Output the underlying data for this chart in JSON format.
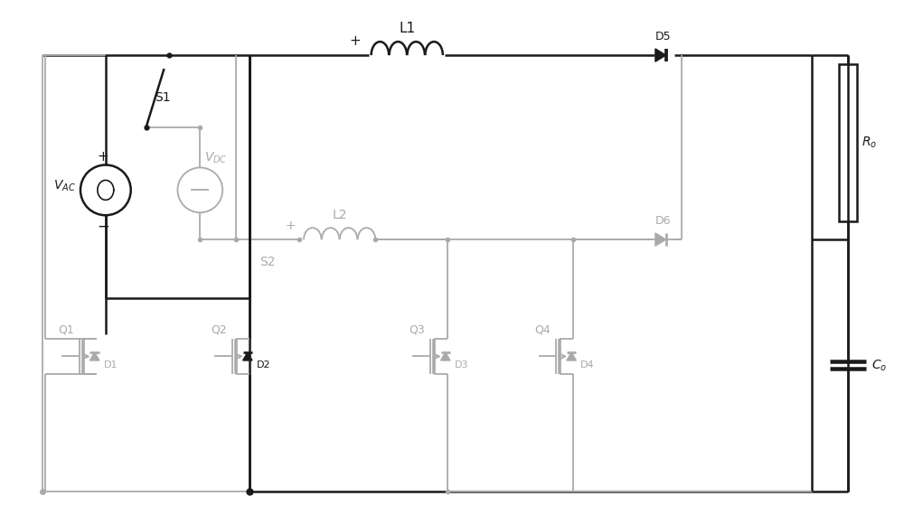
{
  "bg_color": "#ffffff",
  "black": "#1a1a1a",
  "gray": "#aaaaaa",
  "fig_width": 10.0,
  "fig_height": 5.8,
  "dpi": 100,
  "xlim": [
    0,
    100
  ],
  "ylim": [
    0,
    58
  ]
}
